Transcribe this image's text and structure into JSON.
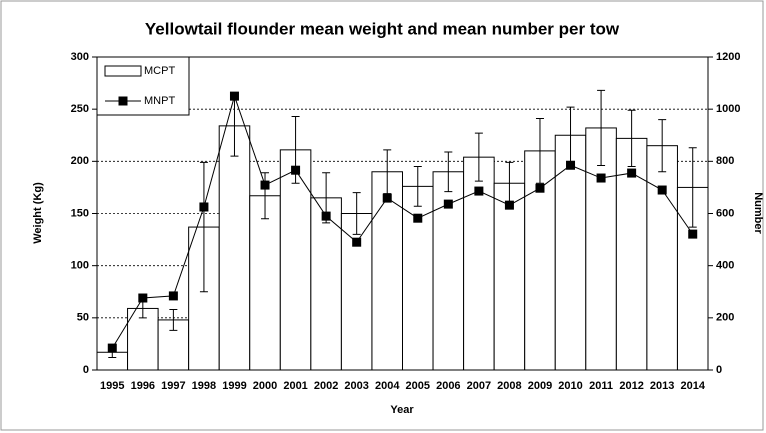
{
  "chart_data": {
    "type": "bar-line",
    "title": "Yellowtail flounder mean weight and mean number per tow",
    "xlabel": "Year",
    "ylabel": "Weight (Kg)",
    "y2label": "Number",
    "categories": [
      "1995",
      "1996",
      "1997",
      "1998",
      "1999",
      "2000",
      "2001",
      "2002",
      "2003",
      "2004",
      "2005",
      "2006",
      "2007",
      "2008",
      "2009",
      "2010",
      "2011",
      "2012",
      "2013",
      "2014"
    ],
    "series": [
      {
        "name": "MCPT",
        "type": "bar",
        "color": "#ffffff",
        "axis": "y",
        "values": [
          17,
          59,
          48,
          137,
          234,
          167,
          211,
          165,
          150,
          190,
          176,
          190,
          204,
          179,
          210,
          225,
          232,
          222,
          215,
          175
        ],
        "errors": [
          5,
          9,
          10,
          62,
          29,
          22,
          32,
          24,
          20,
          21,
          19,
          19,
          23,
          20,
          31,
          27,
          36,
          27,
          25,
          38
        ]
      },
      {
        "name": "MNPT",
        "type": "line",
        "color": "#000000",
        "axis": "y2",
        "values": [
          84,
          276,
          284,
          625,
          1050,
          709,
          766,
          590,
          490,
          659,
          582,
          636,
          686,
          632,
          697,
          785,
          736,
          755,
          690,
          521
        ]
      }
    ],
    "ylim": [
      0,
      300
    ],
    "yticks": [
      0,
      50,
      100,
      150,
      200,
      250,
      300
    ],
    "y2lim": [
      0,
      1200
    ],
    "y2ticks": [
      0,
      200,
      400,
      600,
      800,
      1000,
      1200
    ],
    "grid": true,
    "legend": "upper left"
  }
}
